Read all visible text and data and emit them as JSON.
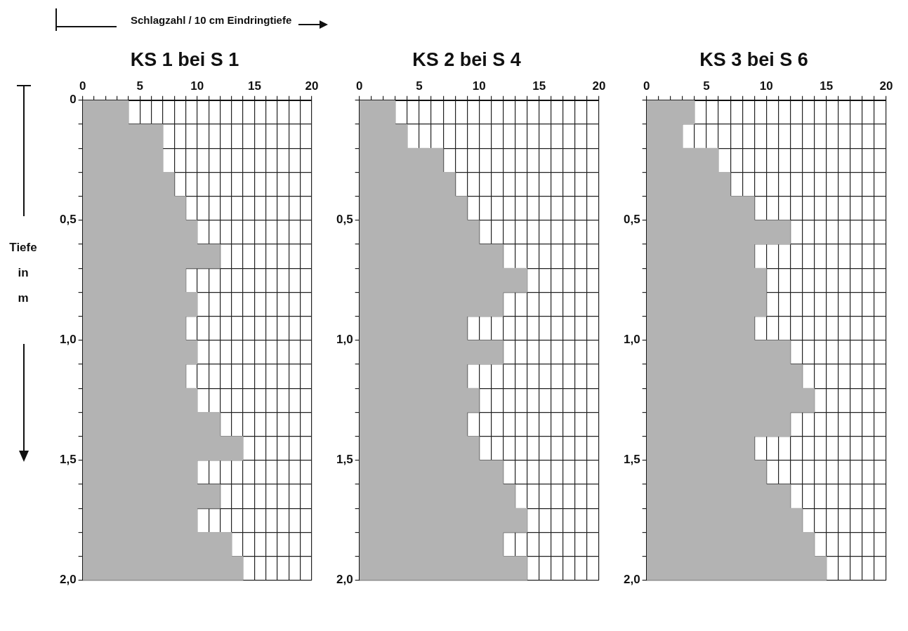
{
  "chart_data": [
    {
      "type": "bar",
      "orientation": "horizontal",
      "title": "KS 1 bei S 1",
      "xlabel": "Schlagzahl / 10 cm Eindringtiefe",
      "ylabel": "Tiefe in m",
      "color": "#b3b3b3",
      "grid": true,
      "legend": false,
      "x": [
        0.05,
        0.15,
        0.25,
        0.35,
        0.45,
        0.55,
        0.65,
        0.75,
        0.85,
        0.95,
        1.05,
        1.15,
        1.25,
        1.35,
        1.45,
        1.55,
        1.65,
        1.75,
        1.85,
        1.95
      ],
      "values": [
        4,
        7,
        7,
        8,
        9,
        10,
        12,
        9,
        10,
        9,
        10,
        9,
        10,
        12,
        14,
        10,
        12,
        10,
        13,
        14
      ],
      "xlim": [
        0,
        20
      ],
      "xticks": [
        0,
        {
          "value": 1,
          "label": null
        },
        {
          "value": 2,
          "label": null
        },
        {
          "value": 3,
          "label": null
        },
        {
          "value": 4,
          "label": null
        },
        5,
        {
          "value": 6,
          "label": null
        },
        {
          "value": 7,
          "label": null
        },
        {
          "value": 8,
          "label": null
        },
        {
          "value": 9,
          "label": null
        },
        10,
        {
          "value": 11,
          "label": null
        },
        {
          "value": 12,
          "label": null
        },
        {
          "value": 13,
          "label": null
        },
        {
          "value": 14,
          "label": null
        },
        15,
        {
          "value": 16,
          "label": null
        },
        {
          "value": 17,
          "label": null
        },
        {
          "value": 18,
          "label": null
        },
        {
          "value": 19,
          "label": null
        },
        20
      ],
      "ylim": [
        2.0,
        0
      ],
      "yticks": [
        0,
        {
          "value": 0.1,
          "label": null
        },
        {
          "value": 0.2,
          "label": null
        },
        {
          "value": 0.3,
          "label": null
        },
        {
          "value": 0.4,
          "label": null
        },
        {
          "value": 0.5,
          "label": "0,5"
        },
        {
          "value": 0.6,
          "label": null
        },
        {
          "value": 0.7,
          "label": null
        },
        {
          "value": 0.8,
          "label": null
        },
        {
          "value": 0.9,
          "label": null
        },
        {
          "value": 1.0,
          "label": "1,0"
        },
        {
          "value": 1.1,
          "label": null
        },
        {
          "value": 1.2,
          "label": null
        },
        {
          "value": 1.3,
          "label": null
        },
        {
          "value": 1.4,
          "label": null
        },
        {
          "value": 1.5,
          "label": "1,5"
        },
        {
          "value": 1.6,
          "label": null
        },
        {
          "value": 1.7,
          "label": null
        },
        {
          "value": 1.8,
          "label": null
        },
        {
          "value": 1.9,
          "label": null
        },
        {
          "value": 2.0,
          "label": "2,0"
        }
      ]
    },
    {
      "type": "bar",
      "orientation": "horizontal",
      "title": "KS 2 bei S 4",
      "color": "#b3b3b3",
      "grid": true,
      "legend": false,
      "x": [
        0.05,
        0.15,
        0.25,
        0.35,
        0.45,
        0.55,
        0.65,
        0.75,
        0.85,
        0.95,
        1.05,
        1.15,
        1.25,
        1.35,
        1.45,
        1.55,
        1.65,
        1.75,
        1.85,
        1.95
      ],
      "values": [
        3,
        4,
        7,
        8,
        9,
        10,
        12,
        14,
        12,
        9,
        12,
        9,
        10,
        9,
        10,
        12,
        13,
        14,
        12,
        14
      ],
      "xlim": [
        0,
        20
      ],
      "xticks": [
        0,
        {
          "value": 1,
          "label": null
        },
        {
          "value": 2,
          "label": null
        },
        {
          "value": 3,
          "label": null
        },
        {
          "value": 4,
          "label": null
        },
        5,
        {
          "value": 6,
          "label": null
        },
        {
          "value": 7,
          "label": null
        },
        {
          "value": 8,
          "label": null
        },
        {
          "value": 9,
          "label": null
        },
        10,
        {
          "value": 11,
          "label": null
        },
        {
          "value": 12,
          "label": null
        },
        {
          "value": 13,
          "label": null
        },
        {
          "value": 14,
          "label": null
        },
        15,
        {
          "value": 16,
          "label": null
        },
        {
          "value": 17,
          "label": null
        },
        {
          "value": 18,
          "label": null
        },
        {
          "value": 19,
          "label": null
        },
        20
      ],
      "ylim": [
        2.0,
        0
      ],
      "yticks": [
        {
          "value": 0,
          "label": null
        },
        {
          "value": 0.1,
          "label": null
        },
        {
          "value": 0.2,
          "label": null
        },
        {
          "value": 0.3,
          "label": null
        },
        {
          "value": 0.4,
          "label": null
        },
        {
          "value": 0.5,
          "label": "0,5"
        },
        {
          "value": 0.6,
          "label": null
        },
        {
          "value": 0.7,
          "label": null
        },
        {
          "value": 0.8,
          "label": null
        },
        {
          "value": 0.9,
          "label": null
        },
        {
          "value": 1.0,
          "label": "1,0"
        },
        {
          "value": 1.1,
          "label": null
        },
        {
          "value": 1.2,
          "label": null
        },
        {
          "value": 1.3,
          "label": null
        },
        {
          "value": 1.4,
          "label": null
        },
        {
          "value": 1.5,
          "label": "1,5"
        },
        {
          "value": 1.6,
          "label": null
        },
        {
          "value": 1.7,
          "label": null
        },
        {
          "value": 1.8,
          "label": null
        },
        {
          "value": 1.9,
          "label": null
        },
        {
          "value": 2.0,
          "label": "2,0"
        }
      ]
    },
    {
      "type": "bar",
      "orientation": "horizontal",
      "title": "KS 3 bei S 6",
      "color": "#b3b3b3",
      "grid": true,
      "legend": false,
      "x": [
        0.05,
        0.15,
        0.25,
        0.35,
        0.45,
        0.55,
        0.65,
        0.75,
        0.85,
        0.95,
        1.05,
        1.15,
        1.25,
        1.35,
        1.45,
        1.55,
        1.65,
        1.75,
        1.85,
        1.95
      ],
      "values": [
        4,
        3,
        6,
        7,
        9,
        12,
        9,
        10,
        10,
        9,
        12,
        13,
        14,
        12,
        9,
        10,
        12,
        13,
        14,
        15
      ],
      "xlim": [
        0,
        20
      ],
      "xticks": [
        0,
        {
          "value": 1,
          "label": null
        },
        {
          "value": 2,
          "label": null
        },
        {
          "value": 3,
          "label": null
        },
        {
          "value": 4,
          "label": null
        },
        5,
        {
          "value": 6,
          "label": null
        },
        {
          "value": 7,
          "label": null
        },
        {
          "value": 8,
          "label": null
        },
        {
          "value": 9,
          "label": null
        },
        10,
        {
          "value": 11,
          "label": null
        },
        {
          "value": 12,
          "label": null
        },
        {
          "value": 13,
          "label": null
        },
        {
          "value": 14,
          "label": null
        },
        15,
        {
          "value": 16,
          "label": null
        },
        {
          "value": 17,
          "label": null
        },
        {
          "value": 18,
          "label": null
        },
        {
          "value": 19,
          "label": null
        },
        20
      ],
      "ylim": [
        2.0,
        0
      ],
      "yticks": [
        {
          "value": 0,
          "label": null
        },
        {
          "value": 0.1,
          "label": null
        },
        {
          "value": 0.2,
          "label": null
        },
        {
          "value": 0.3,
          "label": null
        },
        {
          "value": 0.4,
          "label": null
        },
        {
          "value": 0.5,
          "label": "0,5"
        },
        {
          "value": 0.6,
          "label": null
        },
        {
          "value": 0.7,
          "label": null
        },
        {
          "value": 0.8,
          "label": null
        },
        {
          "value": 0.9,
          "label": null
        },
        {
          "value": 1.0,
          "label": "1,0"
        },
        {
          "value": 1.1,
          "label": null
        },
        {
          "value": 1.2,
          "label": null
        },
        {
          "value": 1.3,
          "label": null
        },
        {
          "value": 1.4,
          "label": null
        },
        {
          "value": 1.5,
          "label": "1,5"
        },
        {
          "value": 1.6,
          "label": null
        },
        {
          "value": 1.7,
          "label": null
        },
        {
          "value": 1.8,
          "label": null
        },
        {
          "value": 1.9,
          "label": null
        },
        {
          "value": 2.0,
          "label": "2,0"
        }
      ]
    }
  ]
}
